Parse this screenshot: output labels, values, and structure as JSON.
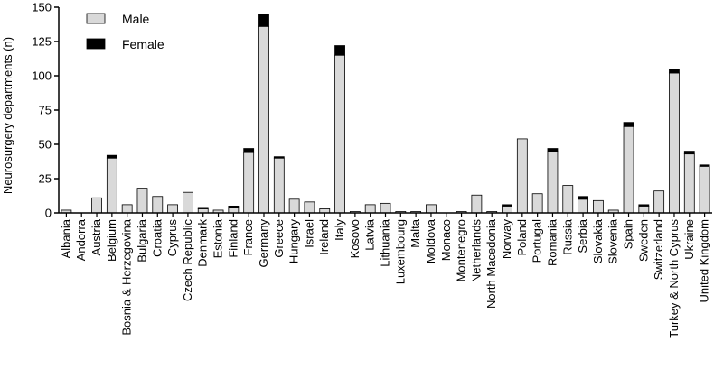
{
  "chart_data": {
    "type": "bar",
    "stacked": true,
    "ylabel": "Neurosurgery departments (n)",
    "xlabel": "",
    "title": "",
    "ylim": [
      0,
      150
    ],
    "yticks": [
      0,
      25,
      50,
      75,
      100,
      125,
      150
    ],
    "grid": false,
    "legend": "top-left",
    "categories": [
      "Albania",
      "Andorra",
      "Austria",
      "Belgium",
      "Bosnia & Herzegovina",
      "Bulgaria",
      "Croatia",
      "Cyprus",
      "Czech Republic",
      "Denmark",
      "Estonia",
      "Finland",
      "France",
      "Germany",
      "Greece",
      "Hungary",
      "Israel",
      "Ireland",
      "Italy",
      "Kosovo",
      "Latvia",
      "Lithuania",
      "Luxembourg",
      "Malta",
      "Moldova",
      "Monaco",
      "Montenegro",
      "Netherlands",
      "North Macedonia",
      "Norway",
      "Poland",
      "Portugal",
      "Romania",
      "Russia",
      "Serbia",
      "Slovakia",
      "Slovenia",
      "Spain",
      "Sweden",
      "Switzerland",
      "Turkey & North Cyprus",
      "Ukraine",
      "United Kingdom"
    ],
    "series": [
      {
        "name": "Male",
        "color": "#d9d9d9",
        "values": [
          2,
          0,
          11,
          40,
          6,
          18,
          12,
          6,
          15,
          3,
          2,
          4,
          44,
          136,
          40,
          10,
          8,
          3,
          115,
          1,
          6,
          7,
          1,
          1,
          6,
          0,
          1,
          13,
          1,
          5,
          54,
          14,
          45,
          20,
          10,
          9,
          2,
          63,
          5,
          16,
          102,
          43,
          34
        ]
      },
      {
        "name": "Female",
        "color": "#000000",
        "values": [
          0,
          0,
          0,
          2,
          0,
          0,
          0,
          0,
          0,
          1,
          0,
          1,
          3,
          9,
          1,
          0,
          0,
          0,
          7,
          0,
          0,
          0,
          0,
          0,
          0,
          0,
          0,
          0,
          0,
          1,
          0,
          0,
          2,
          0,
          2,
          0,
          0,
          3,
          1,
          0,
          3,
          2,
          1
        ]
      }
    ]
  }
}
